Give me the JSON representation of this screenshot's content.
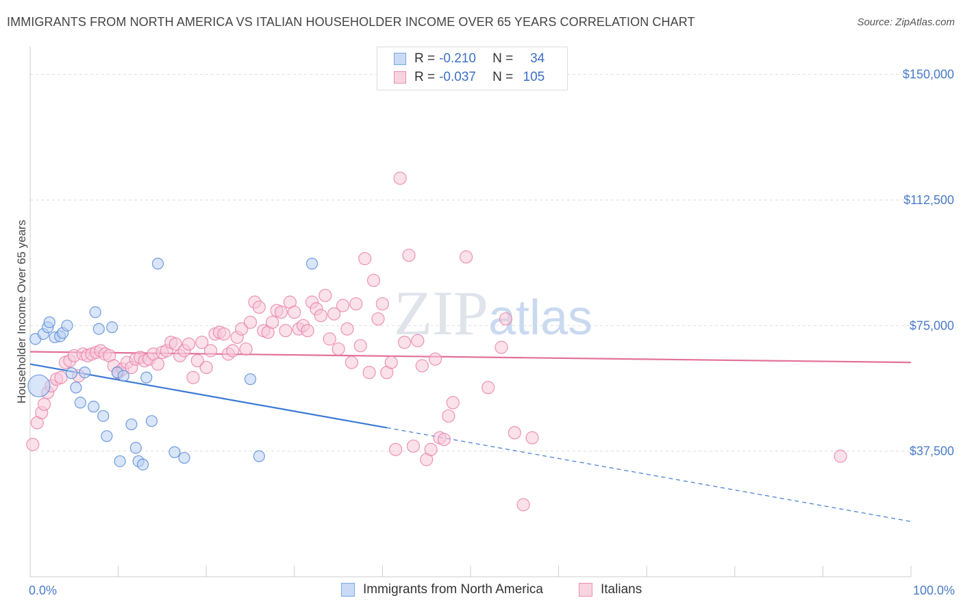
{
  "title": "IMMIGRANTS FROM NORTH AMERICA VS ITALIAN HOUSEHOLDER INCOME OVER 65 YEARS CORRELATION CHART",
  "source": "Source: ZipAtlas.com",
  "watermark": "ZIPatlas",
  "legend": {
    "rows": [
      {
        "r_label": "R =",
        "r_value": "-0.210",
        "n_label": "N =",
        "n_value": "34",
        "color": "#7aa6e8",
        "fill": "#c8daf5"
      },
      {
        "r_label": "R =",
        "r_value": "-0.037",
        "n_label": "N =",
        "n_value": "105",
        "color": "#ee8fb0",
        "fill": "#f8d3e0"
      }
    ]
  },
  "chart_data": {
    "type": "scatter",
    "ylabel": "Householder Income Over 65 years",
    "xlim": [
      0,
      100
    ],
    "ylim": [
      0,
      157500
    ],
    "x_tick_labels": [
      "0.0%",
      "100.0%"
    ],
    "y_ticks": [
      {
        "value": 37500,
        "label": "$37,500"
      },
      {
        "value": 75000,
        "label": "$75,000"
      },
      {
        "value": 112500,
        "label": "$112,500"
      },
      {
        "value": 150000,
        "label": "$150,000"
      }
    ],
    "series": [
      {
        "name": "Immigrants from North America",
        "color": "#4f86d6",
        "fill": "#b9d0f2",
        "trend": {
          "x0": 0,
          "y0": 63500,
          "x1": 40.5,
          "y1": 44500,
          "dash_x1": 100,
          "dash_y1": 16500
        },
        "points": [
          [
            0.6,
            71000
          ],
          [
            1.0,
            57000
          ],
          [
            1.5,
            72500
          ],
          [
            2.0,
            74500
          ],
          [
            2.2,
            76000
          ],
          [
            2.8,
            71500
          ],
          [
            3.4,
            71800
          ],
          [
            3.7,
            72800
          ],
          [
            4.2,
            75000
          ],
          [
            4.7,
            60800
          ],
          [
            5.2,
            56500
          ],
          [
            5.7,
            52000
          ],
          [
            6.2,
            61000
          ],
          [
            7.2,
            50800
          ],
          [
            7.4,
            79000
          ],
          [
            7.8,
            74000
          ],
          [
            8.3,
            48000
          ],
          [
            8.7,
            42000
          ],
          [
            9.3,
            74500
          ],
          [
            9.9,
            61000
          ],
          [
            10.2,
            34500
          ],
          [
            10.6,
            60000
          ],
          [
            11.5,
            45500
          ],
          [
            12.0,
            38500
          ],
          [
            12.3,
            34500
          ],
          [
            12.8,
            33500
          ],
          [
            13.2,
            59500
          ],
          [
            13.8,
            46500
          ],
          [
            14.5,
            93500
          ],
          [
            16.4,
            37200
          ],
          [
            17.5,
            35500
          ],
          [
            25.0,
            59000
          ],
          [
            26.0,
            36000
          ],
          [
            32.0,
            93500
          ]
        ],
        "sizes": [
          14,
          30,
          14,
          14,
          14,
          14,
          14,
          14,
          14,
          14,
          14,
          14,
          14,
          14,
          14,
          14,
          14,
          14,
          14,
          14,
          14,
          14,
          14,
          14,
          14,
          14,
          14,
          14,
          14,
          14,
          14,
          14,
          14,
          14
        ]
      },
      {
        "name": "Italians",
        "color": "#e87aa2",
        "fill": "#f6c8d8",
        "trend": {
          "x0": 0,
          "y0": 67200,
          "x1": 100,
          "y1": 64000
        },
        "points": [
          [
            0.3,
            39500
          ],
          [
            0.8,
            46000
          ],
          [
            1.3,
            49000
          ],
          [
            1.6,
            51500
          ],
          [
            2.0,
            55000
          ],
          [
            2.4,
            57000
          ],
          [
            3.0,
            59000
          ],
          [
            3.5,
            59500
          ],
          [
            4.0,
            64000
          ],
          [
            4.5,
            64500
          ],
          [
            5.0,
            66000
          ],
          [
            5.5,
            60000
          ],
          [
            6.0,
            66500
          ],
          [
            6.5,
            66000
          ],
          [
            7.0,
            66500
          ],
          [
            7.5,
            67000
          ],
          [
            8.0,
            67500
          ],
          [
            8.5,
            66500
          ],
          [
            9.0,
            66000
          ],
          [
            9.5,
            63000
          ],
          [
            10.0,
            61000
          ],
          [
            10.5,
            62000
          ],
          [
            11.0,
            64000
          ],
          [
            11.5,
            62500
          ],
          [
            12.0,
            65000
          ],
          [
            12.5,
            65500
          ],
          [
            13.0,
            64500
          ],
          [
            13.5,
            65000
          ],
          [
            14.0,
            66500
          ],
          [
            14.5,
            63500
          ],
          [
            15.0,
            67000
          ],
          [
            15.5,
            67500
          ],
          [
            16.0,
            70000
          ],
          [
            16.5,
            69500
          ],
          [
            17.0,
            66000
          ],
          [
            17.5,
            67500
          ],
          [
            18.0,
            69500
          ],
          [
            18.5,
            59500
          ],
          [
            19.0,
            64500
          ],
          [
            19.5,
            70000
          ],
          [
            20.0,
            62500
          ],
          [
            20.5,
            67500
          ],
          [
            21.0,
            72500
          ],
          [
            21.5,
            73000
          ],
          [
            22.0,
            72500
          ],
          [
            22.5,
            66500
          ],
          [
            23.0,
            67500
          ],
          [
            23.5,
            71500
          ],
          [
            24.0,
            74000
          ],
          [
            24.5,
            68000
          ],
          [
            25.0,
            76000
          ],
          [
            25.5,
            82000
          ],
          [
            26.0,
            80500
          ],
          [
            26.5,
            73500
          ],
          [
            27.0,
            73000
          ],
          [
            27.5,
            76000
          ],
          [
            28.0,
            79500
          ],
          [
            28.5,
            79000
          ],
          [
            29.0,
            73500
          ],
          [
            29.5,
            82000
          ],
          [
            30.0,
            79000
          ],
          [
            30.5,
            74000
          ],
          [
            31.0,
            75000
          ],
          [
            31.5,
            73500
          ],
          [
            32.0,
            82000
          ],
          [
            32.5,
            80000
          ],
          [
            33.0,
            78000
          ],
          [
            33.5,
            84000
          ],
          [
            34.0,
            71000
          ],
          [
            34.5,
            78500
          ],
          [
            35.0,
            68000
          ],
          [
            35.5,
            81000
          ],
          [
            36.0,
            74000
          ],
          [
            36.5,
            64000
          ],
          [
            37.0,
            81500
          ],
          [
            37.5,
            69000
          ],
          [
            38.0,
            95000
          ],
          [
            38.5,
            61000
          ],
          [
            39.0,
            88500
          ],
          [
            39.5,
            77000
          ],
          [
            40.0,
            81500
          ],
          [
            40.5,
            61000
          ],
          [
            41.0,
            64000
          ],
          [
            41.5,
            38000
          ],
          [
            42.0,
            119000
          ],
          [
            42.5,
            70000
          ],
          [
            43.0,
            96000
          ],
          [
            43.5,
            39000
          ],
          [
            44.0,
            70500
          ],
          [
            44.5,
            63000
          ],
          [
            45.0,
            35000
          ],
          [
            45.5,
            38000
          ],
          [
            46.0,
            65000
          ],
          [
            46.5,
            41500
          ],
          [
            47.0,
            41000
          ],
          [
            47.5,
            48000
          ],
          [
            48.0,
            52000
          ],
          [
            49.5,
            95500
          ],
          [
            52.0,
            56500
          ],
          [
            53.5,
            68500
          ],
          [
            54.0,
            77000
          ],
          [
            55.0,
            43000
          ],
          [
            56.0,
            21500
          ],
          [
            57.0,
            41500
          ],
          [
            92.0,
            36000
          ]
        ]
      }
    ],
    "legend_placement": "top-center",
    "bottom_legend_placement": "bottom-center"
  }
}
